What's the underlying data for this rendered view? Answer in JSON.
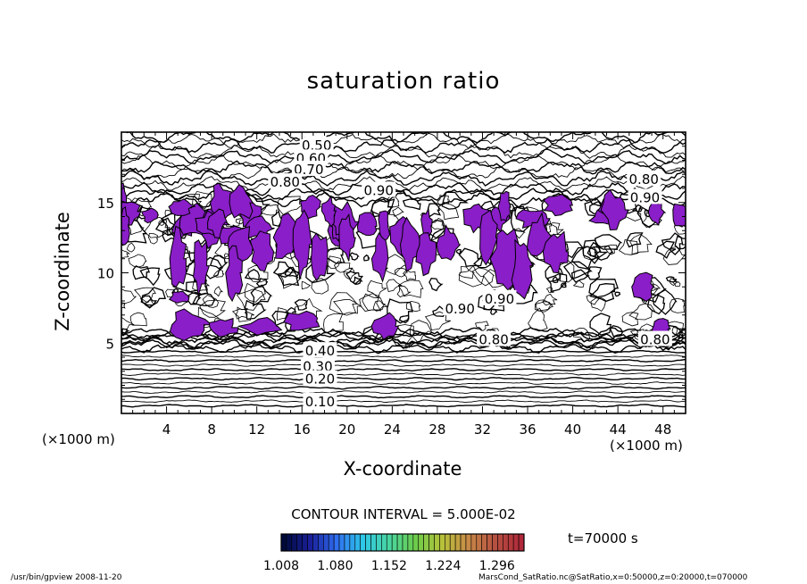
{
  "chart_data": {
    "type": "contour",
    "title": "saturation ratio",
    "xlabel": "X-coordinate",
    "ylabel": "Z-coordinate",
    "x_unit_label": "(×1000 m)",
    "xlim": [
      0,
      50
    ],
    "ylim": [
      0,
      20
    ],
    "xticks": [
      4,
      8,
      12,
      16,
      20,
      24,
      28,
      32,
      36,
      40,
      44,
      48
    ],
    "yticks": [
      5,
      10,
      15
    ],
    "contour_interval_text": "CONTOUR INTERVAL = 5.000E-02",
    "contour_labels": [
      {
        "text": "0.50",
        "x": 17.3,
        "z": 19.1
      },
      {
        "text": "0.60",
        "x": 16.8,
        "z": 18.2
      },
      {
        "text": "0.70",
        "x": 16.6,
        "z": 17.4
      },
      {
        "text": "0.80",
        "x": 14.5,
        "z": 16.5
      },
      {
        "text": "0.90",
        "x": 22.8,
        "z": 15.9
      },
      {
        "text": "0.80",
        "x": 46.3,
        "z": 16.7
      },
      {
        "text": "0.90",
        "x": 46.4,
        "z": 15.4
      },
      {
        "text": "0.90",
        "x": 33.5,
        "z": 8.2
      },
      {
        "text": "0.90",
        "x": 30.0,
        "z": 7.5
      },
      {
        "text": "0.80",
        "x": 33.0,
        "z": 5.3
      },
      {
        "text": "0.80",
        "x": 47.3,
        "z": 5.3
      },
      {
        "text": "0.40",
        "x": 17.6,
        "z": 4.5
      },
      {
        "text": "0.30",
        "x": 17.4,
        "z": 3.4
      },
      {
        "text": "0.20",
        "x": 17.6,
        "z": 2.5
      },
      {
        "text": "0.10",
        "x": 17.6,
        "z": 0.9
      }
    ],
    "supersaturated_threshold": 1.0,
    "colorbar": {
      "min": 1.008,
      "max": 1.332,
      "tick_labels": [
        "1.008",
        "1.080",
        "1.152",
        "1.224",
        "1.296"
      ],
      "colors": [
        "#000a3a",
        "#1a1f9a",
        "#2f6ef0",
        "#2ec7e8",
        "#48d6a0",
        "#6dcc4a",
        "#b7c23a",
        "#c88a48",
        "#b65040",
        "#b0283a"
      ]
    },
    "fill_color": "#8a1ec8",
    "time_label": "t=70000 s"
  },
  "footer": {
    "left": "/usr/bin/gpview   2008-11-20",
    "right": "MarsCond_SatRatio.nc@SatRatio,x=0:50000,z=0:20000,t=070000"
  }
}
